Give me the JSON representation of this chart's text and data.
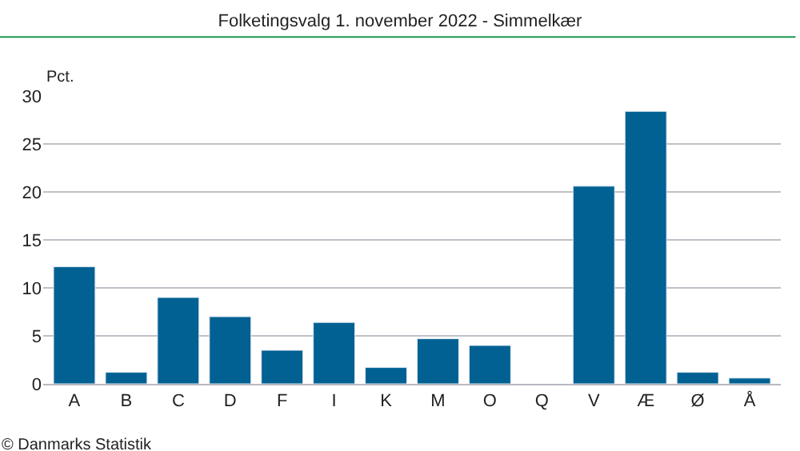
{
  "chart_data": {
    "type": "bar",
    "title": "Folketingsvalg 1. november 2022 - Simmelkær",
    "ylabel": "Pct.",
    "categories": [
      "A",
      "B",
      "C",
      "D",
      "F",
      "I",
      "K",
      "M",
      "O",
      "Q",
      "V",
      "Æ",
      "Ø",
      "Å"
    ],
    "values": [
      12.2,
      1.2,
      9.0,
      7.0,
      3.5,
      6.4,
      1.7,
      4.7,
      4.0,
      null,
      20.6,
      28.4,
      1.2,
      0.6
    ],
    "color": "#006192",
    "ylim": [
      0,
      30
    ],
    "yticks": [
      0,
      5,
      10,
      15,
      20,
      25,
      30
    ],
    "grid": "y",
    "annotations": [
      "© Danmarks Statistik"
    ]
  }
}
